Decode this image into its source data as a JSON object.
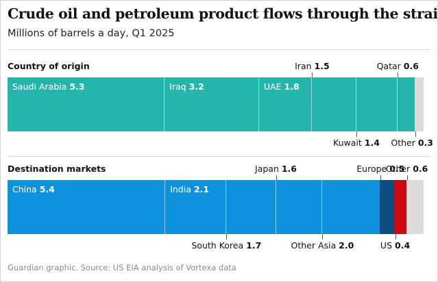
{
  "title": "Crude oil and petroleum product flows through the strait of Hormuz",
  "subtitle": "Millions of barrels a day, Q1 2025",
  "source": "Guardian graphic. Source: US EIA analysis of Vortexa data",
  "chart_data": [
    {
      "type": "bar",
      "orientation": "horizontal-stacked",
      "title": "Country of origin",
      "unit": "Millions of barrels a day",
      "categories": [
        "Saudi Arabia",
        "Iraq",
        "UAE",
        "Iran",
        "Kuwait",
        "Qatar",
        "Other"
      ],
      "values": [
        5.3,
        3.2,
        1.8,
        1.5,
        1.4,
        0.6,
        0.3
      ],
      "value_labels": [
        "5.3",
        "3.2",
        "1.8",
        "1.5",
        "1.4",
        "0.6",
        "0.3"
      ],
      "colors": [
        "#26b5ac",
        "#26b5ac",
        "#26b5ac",
        "#26b5ac",
        "#26b5ac",
        "#26b5ac",
        "#dcdcdc"
      ],
      "label_positions": [
        "inside",
        "inside",
        "inside",
        "above",
        "below",
        "above",
        "below"
      ]
    },
    {
      "type": "bar",
      "orientation": "horizontal-stacked",
      "title": "Destination markets",
      "unit": "Millions of barrels a day",
      "categories": [
        "China",
        "India",
        "South Korea",
        "Japan",
        "Other Asia",
        "Europe",
        "US",
        "Other"
      ],
      "values": [
        5.4,
        2.1,
        1.7,
        1.6,
        2.0,
        0.5,
        0.4,
        0.6
      ],
      "value_labels": [
        "5.4",
        "2.1",
        "1.7",
        "1.6",
        "2.0",
        "0.5",
        "0.4",
        "0.6"
      ],
      "colors": [
        "#0f92dd",
        "#0f92dd",
        "#0f92dd",
        "#0f92dd",
        "#0f92dd",
        "#0c4e80",
        "#cc0a11",
        "#dcdcdc"
      ],
      "label_positions": [
        "inside",
        "inside",
        "below",
        "above",
        "below",
        "above",
        "below",
        "above"
      ]
    }
  ]
}
